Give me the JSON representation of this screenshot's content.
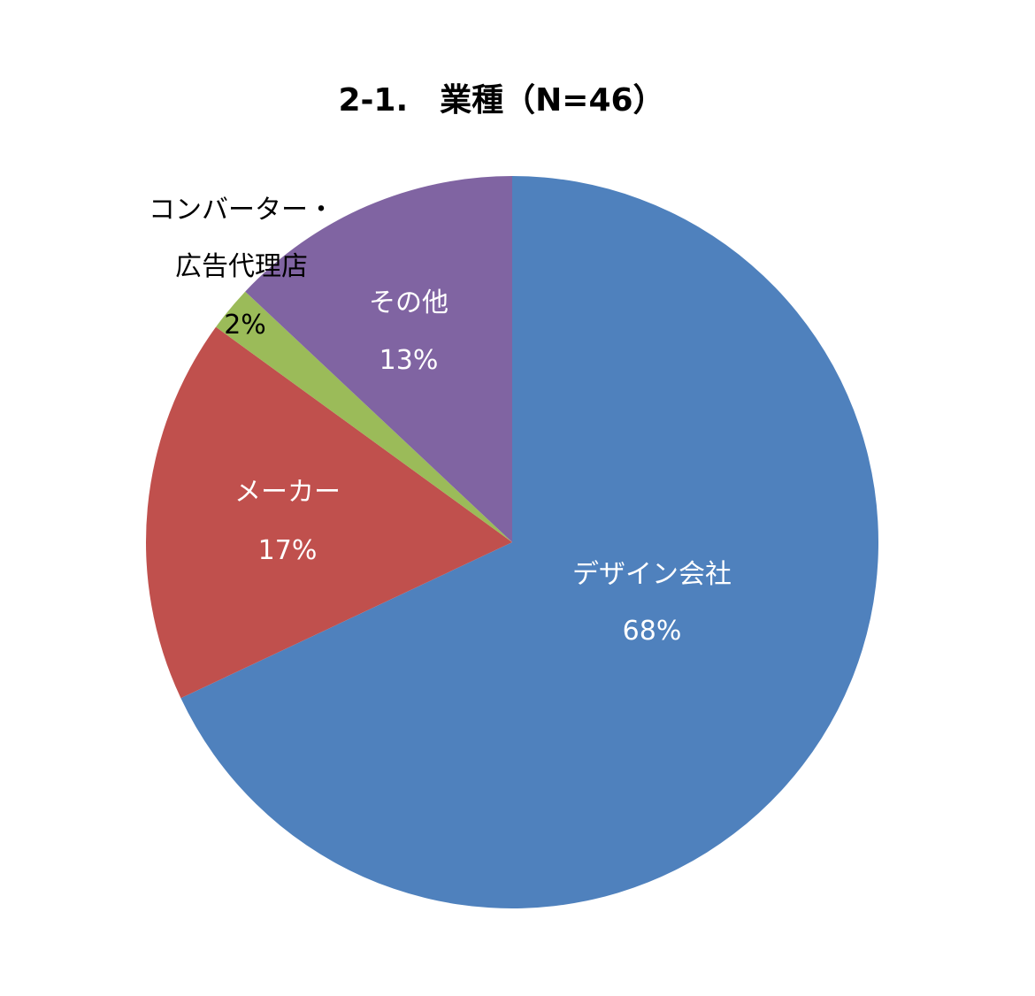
{
  "chart_data": {
    "type": "pie",
    "title": "2-1.　業種（N=46）",
    "categories": [
      "デザイン会社",
      "メーカー",
      "コンバーター・\n広告代理店",
      "その他"
    ],
    "values": [
      68,
      17,
      2,
      13
    ],
    "value_labels": [
      "68%",
      "17%",
      "2%",
      "13%"
    ],
    "colors": [
      "#4f81bd",
      "#c0504d",
      "#9bbb59",
      "#8064a2"
    ]
  }
}
